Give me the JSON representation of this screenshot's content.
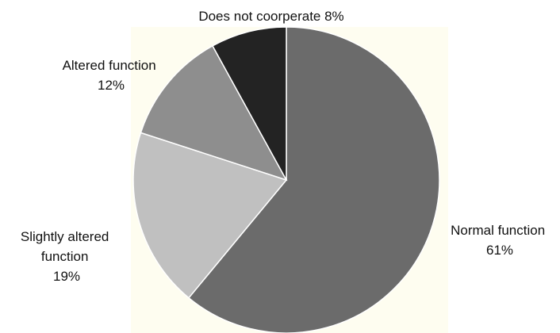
{
  "chart_data": {
    "type": "pie",
    "title": "",
    "background_color": "#fefdf0",
    "slices": [
      {
        "label_lines": [
          "Normal function",
          "61%"
        ],
        "label": "Normal function",
        "value": 61,
        "color": "#6b6b6b"
      },
      {
        "label_lines": [
          "Slightly altered",
          "function",
          "19%"
        ],
        "label": "Slightly altered function",
        "value": 19,
        "color": "#c0c0c0"
      },
      {
        "label_lines": [
          "Altered function",
          "12%"
        ],
        "label": "Altered function",
        "value": 12,
        "color": "#8e8e8e"
      },
      {
        "label_lines": [
          "Does not coorperate 8%"
        ],
        "label": "Does not coorperate",
        "value": 8,
        "color": "#232323"
      }
    ]
  }
}
